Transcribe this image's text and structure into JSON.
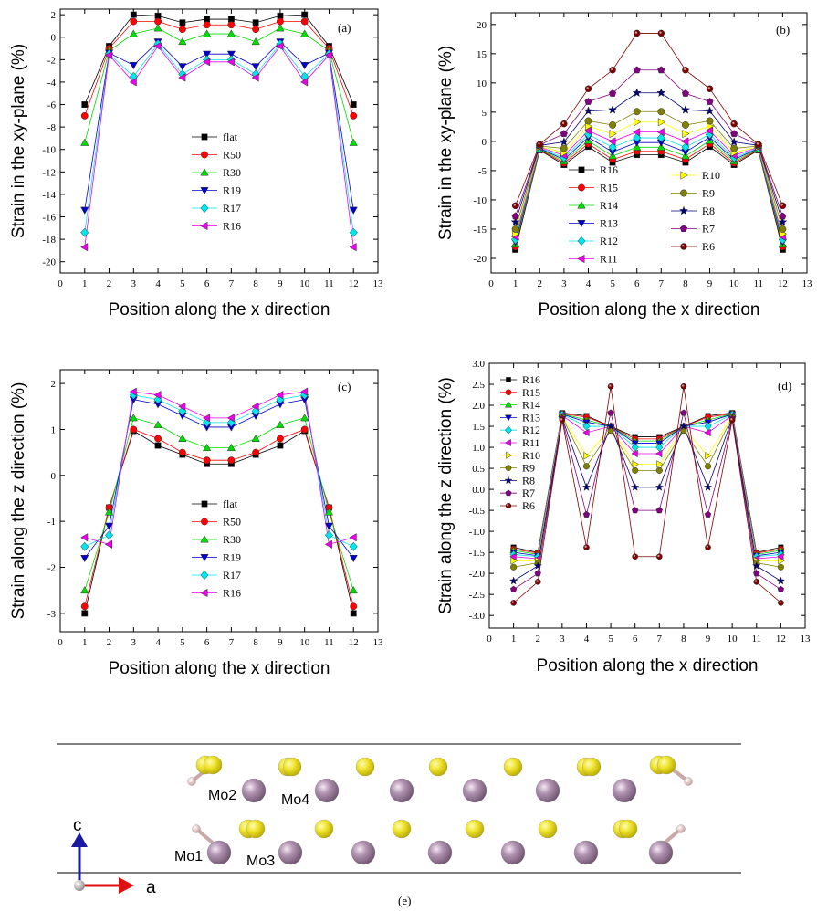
{
  "chart_data": [
    {
      "panel": "(a)",
      "type": "line",
      "xlabel": "Position along the x direction",
      "ylabel": "Strain in the xy-plane (%)",
      "xlim": [
        0,
        13
      ],
      "ylim": [
        -21,
        2.5
      ],
      "xticks": [
        0,
        1,
        2,
        3,
        4,
        5,
        6,
        7,
        8,
        9,
        10,
        11,
        12,
        13
      ],
      "yticks": [
        2,
        0,
        -2,
        -4,
        -6,
        -8,
        -10,
        -12,
        -14,
        -16,
        -18,
        -20
      ],
      "x": [
        1,
        2,
        3,
        4,
        5,
        6,
        7,
        8,
        9,
        10,
        11,
        12
      ],
      "legend_position": "center",
      "series": [
        {
          "name": "flat",
          "color": "#000000",
          "marker": "square",
          "values": [
            -6.0,
            -0.8,
            2.0,
            1.9,
            1.3,
            1.6,
            1.6,
            1.3,
            1.9,
            2.0,
            -0.8,
            -6.0
          ]
        },
        {
          "name": "R50",
          "color": "#ff0000",
          "marker": "circle",
          "values": [
            -7.0,
            -1.0,
            1.4,
            1.4,
            0.7,
            1.1,
            1.1,
            0.7,
            1.4,
            1.4,
            -1.0,
            -7.0
          ]
        },
        {
          "name": "R30",
          "color": "#00dd00",
          "marker": "triangle-up",
          "values": [
            -9.4,
            -1.2,
            0.3,
            0.8,
            -0.4,
            0.3,
            0.3,
            -0.4,
            0.8,
            0.3,
            -1.2,
            -9.4
          ]
        },
        {
          "name": "R19",
          "color": "#0000cc",
          "marker": "triangle-down",
          "values": [
            -15.4,
            -1.4,
            -2.5,
            -0.4,
            -2.6,
            -1.5,
            -1.5,
            -2.6,
            -0.4,
            -2.5,
            -1.4,
            -15.4
          ]
        },
        {
          "name": "R17",
          "color": "#00e5ee",
          "marker": "diamond",
          "values": [
            -17.4,
            -1.5,
            -3.5,
            -0.6,
            -3.3,
            -2.0,
            -2.0,
            -3.3,
            -0.6,
            -3.5,
            -1.5,
            -17.4
          ]
        },
        {
          "name": "R16",
          "color": "#ee00ee",
          "marker": "triangle-left",
          "values": [
            -18.7,
            -1.6,
            -4.0,
            -0.8,
            -3.6,
            -2.2,
            -2.2,
            -3.6,
            -0.8,
            -4.0,
            -1.6,
            -18.7
          ]
        }
      ]
    },
    {
      "panel": "(b)",
      "type": "line",
      "xlabel": "Position along the x direction",
      "ylabel": "Strain in the xy-plane (%)",
      "xlim": [
        0,
        13
      ],
      "ylim": [
        -22.5,
        22
      ],
      "xticks": [
        0,
        1,
        2,
        3,
        4,
        5,
        6,
        7,
        8,
        9,
        10,
        11,
        12,
        13
      ],
      "yticks": [
        20,
        15,
        10,
        5,
        0,
        -5,
        -10,
        -15,
        -20
      ],
      "x": [
        1,
        2,
        3,
        4,
        5,
        6,
        7,
        8,
        9,
        10,
        11,
        12
      ],
      "legend_position": "bottom-center",
      "series": [
        {
          "name": "R16",
          "color": "#000000",
          "marker": "square",
          "values": [
            -18.5,
            -1.5,
            -4.0,
            -0.9,
            -3.6,
            -2.3,
            -2.3,
            -3.6,
            -0.9,
            -4.0,
            -1.5,
            -18.5
          ]
        },
        {
          "name": "R15",
          "color": "#ff0000",
          "marker": "circle",
          "values": [
            -18.0,
            -1.4,
            -3.7,
            -0.4,
            -3.1,
            -1.7,
            -1.7,
            -3.1,
            -0.4,
            -3.7,
            -1.4,
            -18.0
          ]
        },
        {
          "name": "R14",
          "color": "#00dd00",
          "marker": "triangle-up",
          "values": [
            -17.6,
            -1.3,
            -3.4,
            0.1,
            -2.5,
            -1.0,
            -1.0,
            -2.5,
            0.1,
            -3.4,
            -1.3,
            -17.6
          ]
        },
        {
          "name": "R13",
          "color": "#0000cc",
          "marker": "triangle-down",
          "values": [
            -17.2,
            -1.2,
            -3.1,
            0.7,
            -1.8,
            -0.2,
            -0.2,
            -1.8,
            0.7,
            -3.1,
            -1.2,
            -17.2
          ]
        },
        {
          "name": "R12",
          "color": "#00e5ee",
          "marker": "diamond",
          "values": [
            -16.8,
            -1.1,
            -2.8,
            1.2,
            -1.0,
            0.6,
            0.6,
            -1.0,
            1.2,
            -2.8,
            -1.1,
            -16.8
          ]
        },
        {
          "name": "R11",
          "color": "#ee00ee",
          "marker": "triangle-left",
          "values": [
            -16.3,
            -1.0,
            -2.4,
            1.8,
            0.0,
            1.6,
            1.6,
            0.0,
            1.8,
            -2.4,
            -1.0,
            -16.3
          ]
        },
        {
          "name": "R10",
          "color": "#ffff00",
          "marker": "triangle-right",
          "values": [
            -15.8,
            -0.9,
            -1.9,
            2.6,
            1.3,
            3.3,
            3.3,
            1.3,
            2.6,
            -1.9,
            -0.9,
            -15.8
          ]
        },
        {
          "name": "R9",
          "color": "#808000",
          "marker": "circle",
          "values": [
            -15.0,
            -0.8,
            -1.2,
            3.5,
            2.8,
            5.1,
            5.1,
            2.8,
            3.5,
            -1.2,
            -0.8,
            -15.0
          ]
        },
        {
          "name": "R8",
          "color": "#00007a",
          "marker": "star",
          "values": [
            -13.8,
            -0.7,
            -0.1,
            5.2,
            5.4,
            8.3,
            8.3,
            5.4,
            5.2,
            -0.1,
            -0.7,
            -13.8
          ]
        },
        {
          "name": "R7",
          "color": "#800080",
          "marker": "pentagon",
          "values": [
            -12.8,
            -0.6,
            1.3,
            6.8,
            8.2,
            12.2,
            12.2,
            8.2,
            6.8,
            1.3,
            -0.6,
            -12.8
          ]
        },
        {
          "name": "R6",
          "color": "#800000",
          "marker": "hex-circle",
          "values": [
            -11.0,
            -0.5,
            3.0,
            9.0,
            12.2,
            18.5,
            18.5,
            12.2,
            9.0,
            3.0,
            -0.5,
            -11.0
          ]
        }
      ]
    },
    {
      "panel": "(c)",
      "type": "line",
      "xlabel": "Position along the x direction",
      "ylabel": "Strain along the z direction (%)",
      "xlim": [
        0,
        13
      ],
      "ylim": [
        -3.4,
        2.3
      ],
      "xticks": [
        0,
        1,
        2,
        3,
        4,
        5,
        6,
        7,
        8,
        9,
        10,
        11,
        12,
        13
      ],
      "yticks": [
        2,
        1,
        0,
        -1,
        -2,
        -3
      ],
      "x": [
        1,
        2,
        3,
        4,
        5,
        6,
        7,
        8,
        9,
        10,
        11,
        12
      ],
      "legend_position": "bottom-center",
      "series": [
        {
          "name": "flat",
          "color": "#000000",
          "marker": "square",
          "values": [
            -3.0,
            -0.7,
            0.97,
            0.65,
            0.45,
            0.25,
            0.25,
            0.45,
            0.65,
            0.97,
            -0.7,
            -3.0
          ]
        },
        {
          "name": "R50",
          "color": "#ff0000",
          "marker": "circle",
          "values": [
            -2.85,
            -0.7,
            1.0,
            0.8,
            0.5,
            0.33,
            0.33,
            0.5,
            0.8,
            1.0,
            -0.7,
            -2.85
          ]
        },
        {
          "name": "R30",
          "color": "#00dd00",
          "marker": "triangle-up",
          "values": [
            -2.5,
            -0.8,
            1.25,
            1.1,
            0.8,
            0.6,
            0.6,
            0.8,
            1.1,
            1.25,
            -0.8,
            -2.5
          ]
        },
        {
          "name": "R19",
          "color": "#0000cc",
          "marker": "triangle-down",
          "values": [
            -1.8,
            -1.1,
            1.65,
            1.55,
            1.3,
            1.05,
            1.05,
            1.3,
            1.55,
            1.65,
            -1.1,
            -1.8
          ]
        },
        {
          "name": "R17",
          "color": "#00e5ee",
          "marker": "diamond",
          "values": [
            -1.55,
            -1.3,
            1.75,
            1.65,
            1.4,
            1.15,
            1.15,
            1.4,
            1.65,
            1.75,
            -1.3,
            -1.55
          ]
        },
        {
          "name": "R16",
          "color": "#ee00ee",
          "marker": "triangle-left",
          "values": [
            -1.35,
            -1.5,
            1.82,
            1.75,
            1.5,
            1.25,
            1.25,
            1.5,
            1.75,
            1.82,
            -1.5,
            -1.35
          ]
        }
      ]
    },
    {
      "panel": "(d)",
      "type": "line",
      "xlabel": "Position along the x direction",
      "ylabel": "Strain along the z direction (%)",
      "xlim": [
        0,
        13
      ],
      "ylim": [
        -3.3,
        3.0
      ],
      "xticks": [
        0,
        1,
        2,
        3,
        4,
        5,
        6,
        7,
        8,
        9,
        10,
        11,
        12,
        13
      ],
      "yticks": [
        3.0,
        2.5,
        2.0,
        1.5,
        1.0,
        0.5,
        0.0,
        -0.5,
        -1.0,
        -1.5,
        -2.0,
        -2.5,
        -3.0
      ],
      "x": [
        1,
        2,
        3,
        4,
        5,
        6,
        7,
        8,
        9,
        10,
        11,
        12
      ],
      "legend_position": "top-left",
      "series": [
        {
          "name": "R16",
          "color": "#000000",
          "marker": "square",
          "values": [
            -1.38,
            -1.5,
            1.82,
            1.75,
            1.5,
            1.25,
            1.25,
            1.5,
            1.75,
            1.82,
            -1.5,
            -1.38
          ]
        },
        {
          "name": "R15",
          "color": "#ff0000",
          "marker": "circle",
          "values": [
            -1.42,
            -1.52,
            1.8,
            1.72,
            1.5,
            1.2,
            1.2,
            1.5,
            1.72,
            1.8,
            -1.52,
            -1.42
          ]
        },
        {
          "name": "R14",
          "color": "#00dd00",
          "marker": "triangle-up",
          "values": [
            -1.45,
            -1.55,
            1.8,
            1.65,
            1.5,
            1.15,
            1.15,
            1.5,
            1.65,
            1.8,
            -1.55,
            -1.45
          ]
        },
        {
          "name": "R13",
          "color": "#0000cc",
          "marker": "triangle-down",
          "values": [
            -1.5,
            -1.58,
            1.79,
            1.6,
            1.5,
            1.1,
            1.1,
            1.5,
            1.6,
            1.79,
            -1.58,
            -1.5
          ]
        },
        {
          "name": "R12",
          "color": "#00e5ee",
          "marker": "diamond",
          "values": [
            -1.55,
            -1.6,
            1.78,
            1.5,
            1.5,
            1.0,
            1.0,
            1.5,
            1.5,
            1.78,
            -1.6,
            -1.55
          ]
        },
        {
          "name": "R11",
          "color": "#ee00ee",
          "marker": "triangle-left",
          "values": [
            -1.6,
            -1.65,
            1.76,
            1.35,
            1.5,
            0.85,
            0.85,
            1.5,
            1.35,
            1.76,
            -1.65,
            -1.6
          ]
        },
        {
          "name": "R10",
          "color": "#ffff00",
          "marker": "triangle-right",
          "values": [
            -1.7,
            -1.7,
            1.74,
            0.8,
            1.45,
            0.6,
            0.6,
            1.45,
            0.8,
            1.74,
            -1.7,
            -1.7
          ]
        },
        {
          "name": "R9",
          "color": "#808000",
          "marker": "circle",
          "values": [
            -1.85,
            -1.75,
            1.72,
            0.55,
            1.4,
            0.45,
            0.45,
            1.4,
            0.55,
            1.72,
            -1.75,
            -1.85
          ]
        },
        {
          "name": "R8",
          "color": "#00007a",
          "marker": "star",
          "values": [
            -2.18,
            -1.82,
            1.7,
            0.05,
            1.5,
            0.05,
            0.05,
            1.5,
            0.05,
            1.7,
            -1.82,
            -2.18
          ]
        },
        {
          "name": "R7",
          "color": "#800080",
          "marker": "pentagon",
          "values": [
            -2.38,
            -2.0,
            1.68,
            -0.6,
            1.82,
            -0.5,
            -0.5,
            1.82,
            -0.6,
            1.68,
            -2.0,
            -2.38
          ]
        },
        {
          "name": "R6",
          "color": "#800000",
          "marker": "hex-circle",
          "values": [
            -2.7,
            -2.2,
            1.65,
            -1.38,
            2.45,
            -1.6,
            -1.6,
            2.45,
            -1.38,
            1.65,
            -2.2,
            -2.7
          ]
        }
      ]
    }
  ],
  "structure": {
    "panel_label": "(e)",
    "atom_labels": [
      "Mo2",
      "Mo4",
      "Mo1",
      "Mo3"
    ],
    "axis_labels": [
      "c",
      "a"
    ],
    "colors": {
      "sulfur": "#e5dc18",
      "molybdenum": "#a888a8",
      "hydrogen": "#e8c4c4"
    }
  }
}
